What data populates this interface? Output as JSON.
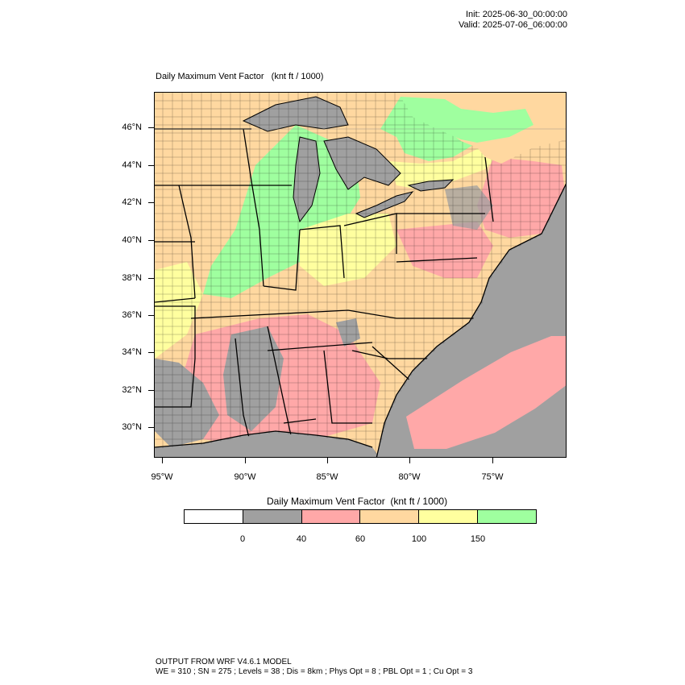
{
  "header": {
    "init": "Init: 2025-06-30_00:00:00",
    "valid": "Valid: 2025-07-06_06:00:00"
  },
  "map": {
    "title": "Daily Maximum Vent Factor",
    "units": "(knt ft / 1000)",
    "lat_labels": [
      "46°N",
      "44°N",
      "42°N",
      "40°N",
      "38°N",
      "36°N",
      "34°N",
      "32°N",
      "30°N"
    ],
    "lon_labels": [
      "95°W",
      "90°W",
      "85°W",
      "80°W",
      "75°W"
    ],
    "colors": {
      "ocean": "#a0a0a0",
      "great_lakes": "#a0a0a0",
      "gray_class": "#a0a0a0",
      "red_class": "#ffa8a8",
      "orange_class": "#ffd8a0",
      "yellow_class": "#ffff9f",
      "green_class": "#9fff9f",
      "border": "#000000"
    }
  },
  "legend": {
    "title": "Daily Maximum Vent Factor",
    "units": "(knt ft / 1000)",
    "segments": [
      {
        "color": "#ffffff"
      },
      {
        "color": "#a0a0a0"
      },
      {
        "color": "#ffa8a8"
      },
      {
        "color": "#ffd8a0"
      },
      {
        "color": "#ffff9f"
      },
      {
        "color": "#9fff9f"
      }
    ],
    "labels": [
      "0",
      "40",
      "60",
      "100",
      "150"
    ]
  },
  "footer": {
    "line1": "OUTPUT FROM WRF V4.6.1 MODEL",
    "line2": "WE = 310 ; SN = 275 ; Levels = 38 ; Dis = 8km ; Phys Opt = 8 ; PBL Opt = 1 ; Cu Opt = 3"
  }
}
